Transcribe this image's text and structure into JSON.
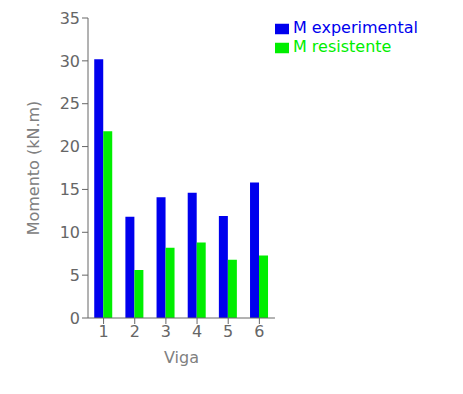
{
  "chart_data": {
    "type": "bar",
    "categories": [
      "1",
      "2",
      "3",
      "4",
      "5",
      "6"
    ],
    "series": [
      {
        "name": "M experimental",
        "color": "#0000EE",
        "values": [
          30.2,
          11.8,
          14.1,
          14.6,
          11.9,
          15.8
        ]
      },
      {
        "name": "M resistente",
        "color": "#00EE00",
        "values": [
          21.8,
          5.6,
          8.2,
          8.8,
          6.8,
          7.3
        ]
      }
    ],
    "xlabel": "Viga",
    "ylabel": "Momento (kN.m)",
    "ylim": [
      0,
      35
    ],
    "yticks": [
      0,
      5,
      10,
      15,
      20,
      25,
      30,
      35
    ],
    "grid": false,
    "legend": "upper right"
  }
}
